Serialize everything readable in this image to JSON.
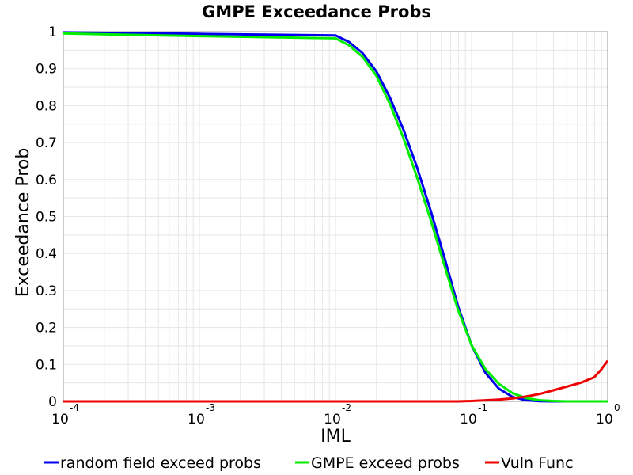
{
  "chart_data": {
    "type": "line",
    "title": "GMPE Exceedance Probs",
    "xlabel": "IML",
    "ylabel": "Exceedance Prob",
    "x_scale": "log",
    "xlim": [
      0.0001,
      1
    ],
    "ylim": [
      0,
      1
    ],
    "x_ticks": [
      {
        "base": "10",
        "exp": "-4"
      },
      {
        "base": "10",
        "exp": "-3"
      },
      {
        "base": "10",
        "exp": "-2"
      },
      {
        "base": "10",
        "exp": "-1"
      },
      {
        "base": "10",
        "exp": "0"
      }
    ],
    "y_ticks": [
      "0",
      "0.1",
      "0.2",
      "0.3",
      "0.4",
      "0.5",
      "0.6",
      "0.7",
      "0.8",
      "0.9",
      "1"
    ],
    "grid": true,
    "legend": "bottom",
    "series": [
      {
        "name": "random field exceed probs",
        "color": "#0000ee",
        "points": [
          [
            0.0001,
            0.998
          ],
          [
            0.001,
            0.994
          ],
          [
            0.01,
            0.99
          ],
          [
            0.0126,
            0.972
          ],
          [
            0.0158,
            0.942
          ],
          [
            0.02,
            0.892
          ],
          [
            0.0251,
            0.822
          ],
          [
            0.0316,
            0.735
          ],
          [
            0.0398,
            0.632
          ],
          [
            0.0501,
            0.515
          ],
          [
            0.0631,
            0.39
          ],
          [
            0.0794,
            0.258
          ],
          [
            0.1,
            0.152
          ],
          [
            0.126,
            0.078
          ],
          [
            0.158,
            0.035
          ],
          [
            0.2,
            0.012
          ],
          [
            0.251,
            0.003
          ],
          [
            0.316,
            0.0005
          ],
          [
            0.398,
            0
          ],
          [
            0.501,
            0
          ],
          [
            0.631,
            0
          ],
          [
            0.794,
            0
          ],
          [
            1,
            0
          ]
        ]
      },
      {
        "name": "GMPE exceed probs",
        "color": "#00ee00",
        "points": [
          [
            0.0001,
            0.995
          ],
          [
            0.001,
            0.988
          ],
          [
            0.01,
            0.982
          ],
          [
            0.0126,
            0.963
          ],
          [
            0.0158,
            0.932
          ],
          [
            0.02,
            0.88
          ],
          [
            0.0251,
            0.805
          ],
          [
            0.0316,
            0.712
          ],
          [
            0.0398,
            0.605
          ],
          [
            0.0501,
            0.49
          ],
          [
            0.0631,
            0.368
          ],
          [
            0.0794,
            0.248
          ],
          [
            0.1,
            0.152
          ],
          [
            0.126,
            0.088
          ],
          [
            0.158,
            0.048
          ],
          [
            0.2,
            0.022
          ],
          [
            0.251,
            0.009
          ],
          [
            0.316,
            0.003
          ],
          [
            0.398,
            0.001
          ],
          [
            0.501,
            0
          ],
          [
            0.631,
            0
          ],
          [
            0.794,
            0
          ],
          [
            1,
            0
          ]
        ]
      },
      {
        "name": "Vuln Func",
        "color": "#ee0000",
        "points": [
          [
            0.0001,
            0
          ],
          [
            0.001,
            0
          ],
          [
            0.01,
            0
          ],
          [
            0.0794,
            0
          ],
          [
            0.1,
            0.001
          ],
          [
            0.126,
            0.003
          ],
          [
            0.158,
            0.005
          ],
          [
            0.2,
            0.008
          ],
          [
            0.251,
            0.013
          ],
          [
            0.316,
            0.02
          ],
          [
            0.398,
            0.03
          ],
          [
            0.501,
            0.04
          ],
          [
            0.631,
            0.05
          ],
          [
            0.794,
            0.065
          ],
          [
            0.891,
            0.085
          ],
          [
            1,
            0.11
          ]
        ]
      }
    ]
  }
}
